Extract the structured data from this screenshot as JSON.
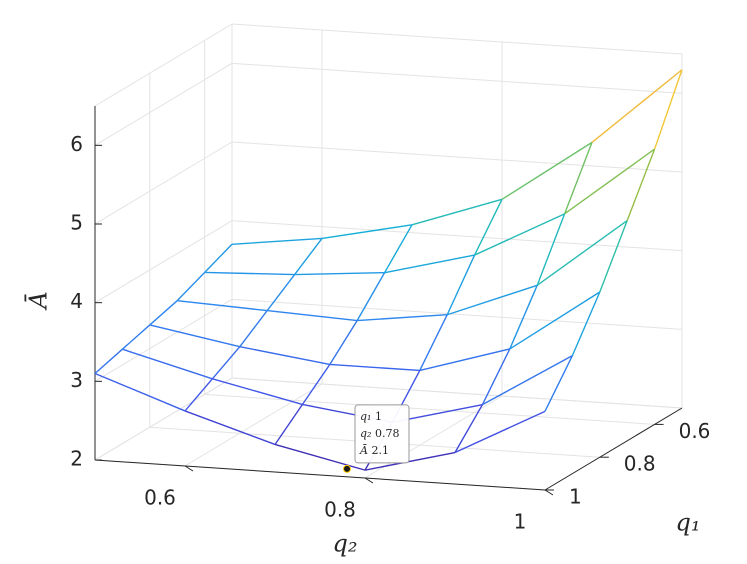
{
  "chart_data": {
    "type": "surface",
    "xlabel": "q₂",
    "ylabel": "q₁",
    "zlabel": "Ā",
    "x": [
      0.5,
      0.6,
      0.7,
      0.8,
      0.9,
      1
    ],
    "y": [
      1,
      0.9,
      0.8,
      0.7,
      0.6,
      0.5
    ],
    "z": [
      [
        3.1,
        2.7,
        2.35,
        2.1,
        2.4,
        3.0
      ],
      [
        3.2,
        2.9,
        2.65,
        2.5,
        2.8,
        3.5
      ],
      [
        3.3,
        3.1,
        2.95,
        2.95,
        3.3,
        4.1
      ],
      [
        3.4,
        3.35,
        3.3,
        3.45,
        3.9,
        4.8
      ],
      [
        3.55,
        3.6,
        3.7,
        4.0,
        4.6,
        5.5
      ],
      [
        3.7,
        3.85,
        4.1,
        4.5,
        5.3,
        6.3
      ]
    ],
    "xlim": [
      0.5,
      1
    ],
    "ylim": [
      0.5,
      1
    ],
    "zlim": [
      2,
      6.5
    ],
    "xticks": [
      0.6,
      0.8,
      1
    ],
    "yticks": [
      0.6,
      0.8,
      1
    ],
    "zticks": [
      2,
      3,
      4,
      5,
      6
    ],
    "grid": true,
    "colormap": "parula",
    "datatip": {
      "labels": [
        "q₁",
        "q₂",
        "Ā"
      ],
      "values": [
        1,
        0.78,
        2.1
      ]
    }
  }
}
